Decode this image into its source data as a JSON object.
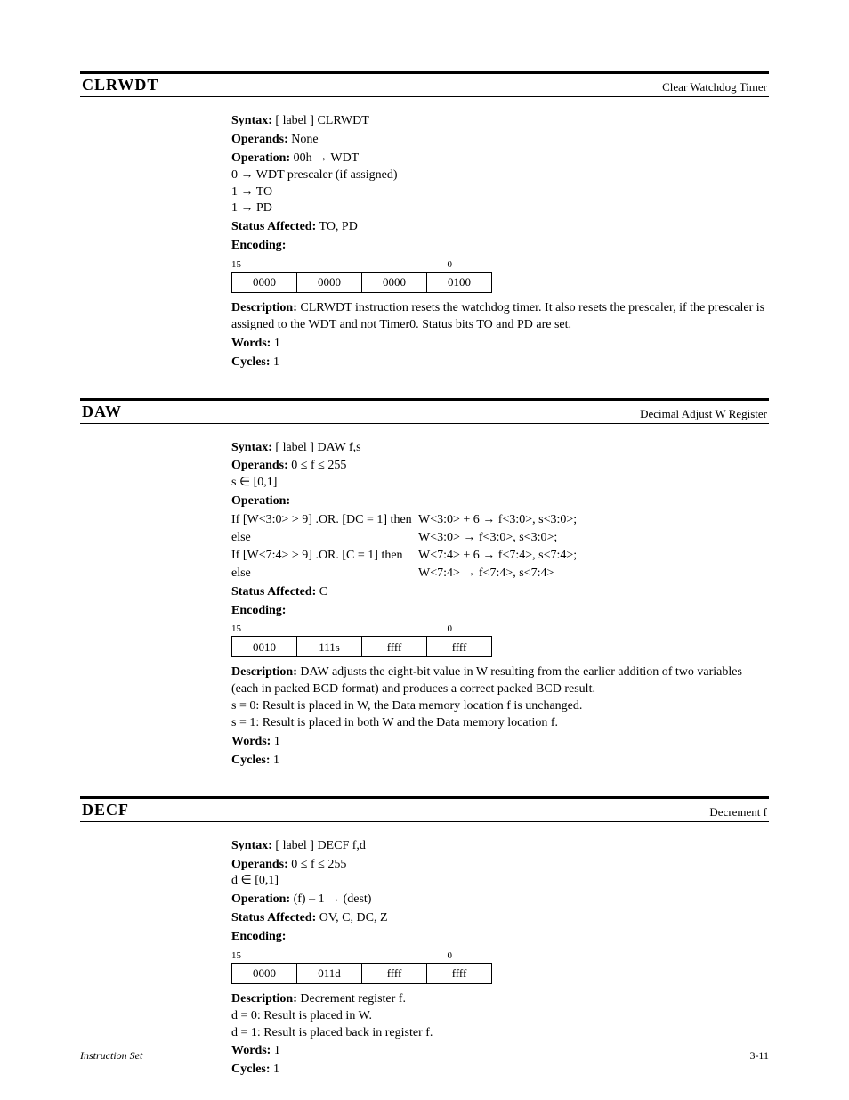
{
  "page": {
    "footer_left": "Instruction Set",
    "footer_right": "3-11"
  },
  "instructions": [
    {
      "mnemonic": "CLRWDT",
      "title_right": "Clear Watchdog Timer",
      "syntax_label": "Syntax:",
      "syntax_value": "[ label ]   CLRWDT",
      "operands_label": "Operands:",
      "operands_value": "None",
      "operation_label": "Operation:",
      "op_lines_simple": [
        "00h → WDT",
        "0 → WDT prescaler (if assigned)",
        "1 → TO",
        "1 → PD"
      ],
      "status_label": "Status Affected:",
      "status_value": "TO, PD",
      "encoding_label": "Encoding:",
      "encoding_cells": [
        "0000",
        "0000",
        "0000",
        "0100"
      ],
      "encoding_bits_left": "15",
      "encoding_bits_right": "0",
      "desc_label": "Description:",
      "desc_value": "CLRWDT instruction resets the watchdog timer. It also resets the prescaler, if the prescaler is assigned to the WDT and not Timer0. Status bits TO and PD are set.",
      "words_label": "Words:",
      "words_value": "1",
      "cycles_label": "Cycles:",
      "cycles_value": "1"
    },
    {
      "mnemonic": "DAW",
      "title_right": "Decimal Adjust W Register",
      "syntax_label": "Syntax:",
      "syntax_value": "[ label ]   DAW   f,s",
      "operands_label": "Operands:",
      "operands_value": "0 ≤ f ≤ 255\ns ∈ [0,1]",
      "operation_label": "Operation:",
      "op_lines_cond": [
        {
          "if": "If [W<3:0> > 9] .OR. [DC = 1] then",
          "then": "W<3:0> + 6 → f<3:0>, s<3:0>;"
        },
        {
          "if": "else",
          "then": "W<3:0> → f<3:0>, s<3:0>;"
        },
        {
          "if": "If [W<7:4> > 9] .OR. [C = 1] then",
          "then": "W<7:4> + 6 → f<7:4>, s<7:4>;"
        },
        {
          "if": "else",
          "then": "W<7:4> → f<7:4>, s<7:4>"
        }
      ],
      "status_label": "Status Affected:",
      "status_value": "C",
      "encoding_label": "Encoding:",
      "encoding_cells": [
        "0010",
        "111s",
        "ffff",
        "ffff"
      ],
      "encoding_bits_left": "15",
      "encoding_bits_right": "0",
      "desc_label": "Description:",
      "desc_value": "DAW adjusts the eight-bit value in W resulting from the earlier addition of two variables (each in packed BCD format) and produces a correct packed BCD result.\ns = 0: Result is placed in W, the Data memory location f is unchanged.\ns = 1: Result is placed in both W and the Data memory location f.",
      "words_label": "Words:",
      "words_value": "1",
      "cycles_label": "Cycles:",
      "cycles_value": "1"
    },
    {
      "mnemonic": "DECF",
      "title_right": "Decrement f",
      "syntax_label": "Syntax:",
      "syntax_value": "[ label ]   DECF   f,d",
      "operands_label": "Operands:",
      "operands_value": "0 ≤ f ≤ 255\nd ∈ [0,1]",
      "operation_label": "Operation:",
      "op_lines_simple": [
        "(f) – 1 → (dest)"
      ],
      "status_label": "Status Affected:",
      "status_value": "OV, C, DC, Z",
      "encoding_label": "Encoding:",
      "encoding_cells": [
        "0000",
        "011d",
        "ffff",
        "ffff"
      ],
      "encoding_bits_left": "15",
      "encoding_bits_right": "0",
      "desc_label": "Description:",
      "desc_value": "Decrement register f.\nd = 0: Result is placed in W.\nd = 1: Result is placed back in register f.",
      "words_label": "Words:",
      "words_value": "1",
      "cycles_label": "Cycles:",
      "cycles_value": "1"
    }
  ]
}
